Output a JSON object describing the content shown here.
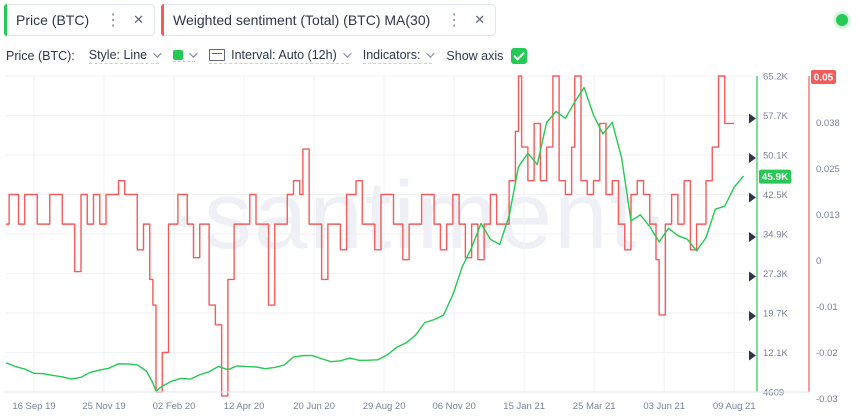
{
  "metrics": [
    {
      "label": "Price (BTC)",
      "color": "#26c953"
    },
    {
      "label": "Weighted sentiment (Total) (BTC) MA(30)",
      "color": "#f55b5b"
    }
  ],
  "settings": {
    "metric_label": "Price (BTC):",
    "style_label": "Style: Line",
    "interval_label": "Interval: Auto (12h)",
    "indicators_label": "Indicators:",
    "show_axis_label": "Show axis",
    "line_color": "#26c953"
  },
  "icons": {
    "menu": "⋮",
    "close": "✕"
  },
  "watermark": "·santiment·",
  "chart_data": {
    "type": "line",
    "x_tick_labels": [
      "16 Sep 19",
      "25 Nov 19",
      "02 Feb 20",
      "12 Apr 20",
      "20 Jun 20",
      "29 Aug 20",
      "06 Nov 20",
      "15 Jan 21",
      "25 Mar 21",
      "03 Jun 21",
      "09 Aug 21"
    ],
    "price_axis": {
      "ticks": [
        "65.2K",
        "57.7K",
        "50.1K",
        "42.5K",
        "34.9K",
        "27.3K",
        "19.7K",
        "12.1K",
        "4609"
      ],
      "min": 4609,
      "max": 65200,
      "current": "45.9K",
      "current_value": 45900
    },
    "sentiment_axis": {
      "ticks": [
        "0.038",
        "0.025",
        "0.013",
        "0",
        "-0.01",
        "-0.02",
        "-0.03"
      ],
      "max_label": "0.05",
      "min": -0.03,
      "max": 0.05
    },
    "series": [
      {
        "name": "Price (BTC)",
        "color": "#26c953",
        "points": [
          [
            0,
            10100
          ],
          [
            3,
            9600
          ],
          [
            6,
            8900
          ],
          [
            9,
            8300
          ],
          [
            12,
            8000
          ],
          [
            15,
            7900
          ],
          [
            18,
            7400
          ],
          [
            21,
            7200
          ],
          [
            24,
            7300
          ],
          [
            27,
            8500
          ],
          [
            30,
            8700
          ],
          [
            33,
            9300
          ],
          [
            36,
            9900
          ],
          [
            39,
            10100
          ],
          [
            42,
            9700
          ],
          [
            45,
            8700
          ],
          [
            47,
            6200
          ],
          [
            48,
            4900
          ],
          [
            50,
            5600
          ],
          [
            53,
            6800
          ],
          [
            56,
            7100
          ],
          [
            59,
            7200
          ],
          [
            62,
            7800
          ],
          [
            65,
            8600
          ],
          [
            68,
            9400
          ],
          [
            71,
            9000
          ],
          [
            74,
            9500
          ],
          [
            77,
            9600
          ],
          [
            80,
            9300
          ],
          [
            83,
            9200
          ],
          [
            86,
            9200
          ],
          [
            89,
            9900
          ],
          [
            92,
            11200
          ],
          [
            95,
            11700
          ],
          [
            98,
            11500
          ],
          [
            101,
            11100
          ],
          [
            104,
            10300
          ],
          [
            107,
            10700
          ],
          [
            110,
            11000
          ],
          [
            113,
            10800
          ],
          [
            116,
            10600
          ],
          [
            119,
            10900
          ],
          [
            122,
            11600
          ],
          [
            125,
            13300
          ],
          [
            128,
            13900
          ],
          [
            131,
            15600
          ],
          [
            134,
            17800
          ],
          [
            137,
            18600
          ],
          [
            140,
            19200
          ],
          [
            143,
            23400
          ],
          [
            146,
            28500
          ],
          [
            149,
            32400
          ],
          [
            152,
            36800
          ],
          [
            155,
            34000
          ],
          [
            158,
            32800
          ],
          [
            161,
            38500
          ],
          [
            164,
            47700
          ],
          [
            167,
            50500
          ],
          [
            170,
            48100
          ],
          [
            173,
            56400
          ],
          [
            176,
            58300
          ],
          [
            179,
            57200
          ],
          [
            182,
            60100
          ],
          [
            185,
            63100
          ],
          [
            188,
            57600
          ],
          [
            191,
            54200
          ],
          [
            194,
            56200
          ],
          [
            197,
            49600
          ],
          [
            200,
            37300
          ],
          [
            203,
            38700
          ],
          [
            206,
            36200
          ],
          [
            209,
            33500
          ],
          [
            212,
            35900
          ],
          [
            215,
            34700
          ],
          [
            218,
            33800
          ],
          [
            221,
            31800
          ],
          [
            224,
            34100
          ],
          [
            227,
            39800
          ],
          [
            230,
            40100
          ],
          [
            233,
            44000
          ],
          [
            236,
            45900
          ]
        ]
      },
      {
        "name": "Weighted sentiment (Total) (BTC) MA(30)",
        "color": "#f55b5b",
        "points": [
          [
            0,
            0.0125
          ],
          [
            1,
            0.02
          ],
          [
            3,
            0.02
          ],
          [
            4,
            0.0125
          ],
          [
            6,
            0.02
          ],
          [
            9,
            0.02
          ],
          [
            10,
            0.0125
          ],
          [
            13,
            0.0125
          ],
          [
            14,
            0.02
          ],
          [
            17,
            0.02
          ],
          [
            18,
            0.0125
          ],
          [
            21,
            0.0125
          ],
          [
            22,
            0.0005
          ],
          [
            24,
            0.02
          ],
          [
            26,
            0.0125
          ],
          [
            28,
            0.02
          ],
          [
            30,
            0.0125
          ],
          [
            32,
            0.02
          ],
          [
            35,
            0.02
          ],
          [
            36,
            0.0235
          ],
          [
            38,
            0.02
          ],
          [
            41,
            0.02
          ],
          [
            42,
            0.006
          ],
          [
            44,
            0.0125
          ],
          [
            46,
            -0.0015
          ],
          [
            47,
            -0.008
          ],
          [
            48,
            -0.03
          ],
          [
            50,
            -0.02
          ],
          [
            52,
            0.0125
          ],
          [
            55,
            0.02
          ],
          [
            58,
            0.0125
          ],
          [
            60,
            0.004
          ],
          [
            62,
            0.0125
          ],
          [
            65,
            -0.008
          ],
          [
            67,
            -0.013
          ],
          [
            69,
            -0.031
          ],
          [
            71,
            -0.0015
          ],
          [
            73,
            0.0125
          ],
          [
            77,
            0.0125
          ],
          [
            78,
            0.02
          ],
          [
            80,
            0.0125
          ],
          [
            83,
            0.0125
          ],
          [
            84,
            -0.008
          ],
          [
            86,
            0.0125
          ],
          [
            89,
            0.0125
          ],
          [
            90,
            0.02
          ],
          [
            92,
            0.0235
          ],
          [
            94,
            0.02
          ],
          [
            95,
            0.0315
          ],
          [
            97,
            0.0125
          ],
          [
            100,
            0.0125
          ],
          [
            101,
            -0.0015
          ],
          [
            103,
            0.0125
          ],
          [
            106,
            0.0125
          ],
          [
            107,
            0.006
          ],
          [
            109,
            0.02
          ],
          [
            111,
            0.02
          ],
          [
            112,
            0.0235
          ],
          [
            114,
            0.0125
          ],
          [
            117,
            0.0125
          ],
          [
            118,
            0.006
          ],
          [
            120,
            0.02
          ],
          [
            123,
            0.02
          ],
          [
            124,
            0.0125
          ],
          [
            126,
            0.0125
          ],
          [
            127,
            0.0035
          ],
          [
            129,
            0.0125
          ],
          [
            132,
            0.0125
          ],
          [
            133,
            0.02
          ],
          [
            135,
            0.02
          ],
          [
            137,
            0.0125
          ],
          [
            139,
            0.006
          ],
          [
            141,
            0.0125
          ],
          [
            143,
            0.02
          ],
          [
            145,
            0.0125
          ],
          [
            147,
            0.004
          ],
          [
            149,
            0.0125
          ],
          [
            151,
            0.0035
          ],
          [
            153,
            0.0125
          ],
          [
            155,
            0.02
          ],
          [
            157,
            0.0125
          ],
          [
            159,
            0.0125
          ],
          [
            160,
            0.0125
          ],
          [
            161,
            0.0235
          ],
          [
            163,
            0.036
          ],
          [
            164,
            0.05
          ],
          [
            165,
            0.032
          ],
          [
            167,
            0.0235
          ],
          [
            169,
            0.038
          ],
          [
            171,
            0.0235
          ],
          [
            173,
            0.032
          ],
          [
            175,
            0.05
          ],
          [
            177,
            0.0235
          ],
          [
            179,
            0.02
          ],
          [
            181,
            0.032
          ],
          [
            182,
            0.05
          ],
          [
            184,
            0.0235
          ],
          [
            186,
            0.02
          ],
          [
            188,
            0.0235
          ],
          [
            190,
            0.038
          ],
          [
            192,
            0.02
          ],
          [
            194,
            0.0235
          ],
          [
            196,
            0.0125
          ],
          [
            198,
            0.006
          ],
          [
            200,
            0.02
          ],
          [
            202,
            0.0235
          ],
          [
            204,
            0.02
          ],
          [
            206,
            0.0125
          ],
          [
            208,
            0.0035
          ],
          [
            209,
            -0.0105
          ],
          [
            211,
            0.0125
          ],
          [
            213,
            0.02
          ],
          [
            215,
            0.0125
          ],
          [
            217,
            0.0235
          ],
          [
            219,
            0.006
          ],
          [
            221,
            0.0125
          ],
          [
            223,
            0.0125
          ],
          [
            224,
            0.0235
          ],
          [
            226,
            0.032
          ],
          [
            228,
            0.05
          ],
          [
            230,
            0.038
          ],
          [
            233,
            0.038
          ]
        ]
      }
    ]
  }
}
